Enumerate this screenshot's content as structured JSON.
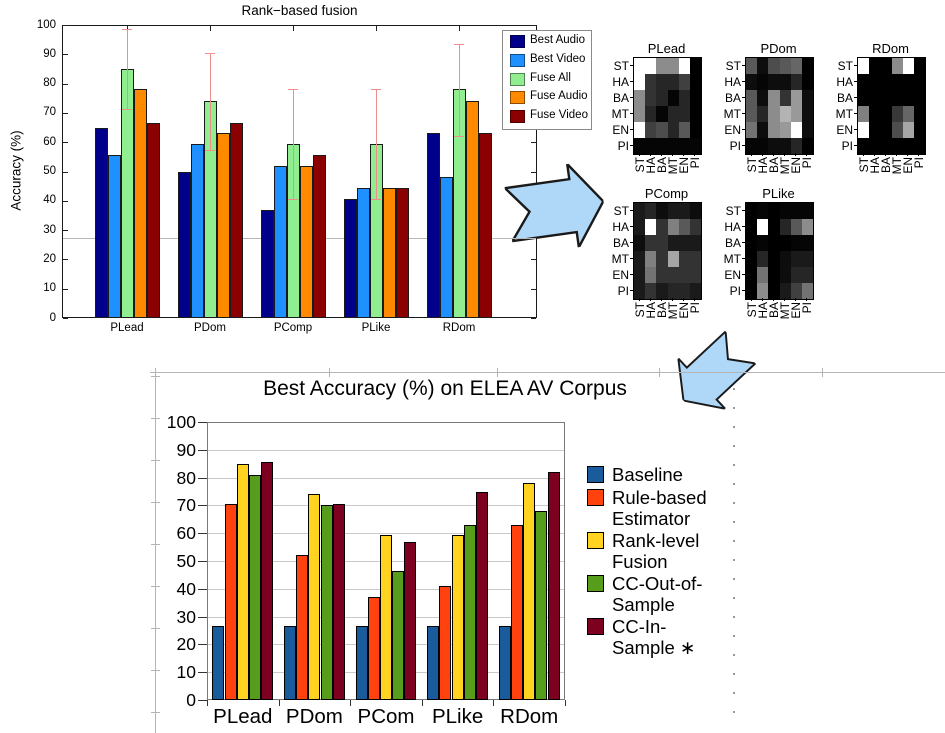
{
  "arrows": {
    "fill": "#AED7F8",
    "outline": "#1a1a1a",
    "directions": [
      "right",
      "down-left"
    ]
  },
  "chart_data": [
    {
      "type": "bar",
      "title": "Rank−based fusion",
      "ylabel": "Accuracy (%)",
      "ylim": [
        0,
        100
      ],
      "yticks": [
        0,
        10,
        20,
        30,
        40,
        50,
        60,
        70,
        80,
        90,
        100
      ],
      "categories": [
        "PLead",
        "PDom",
        "PComp",
        "PLike",
        "RDom"
      ],
      "series": [
        {
          "name": "Best Audio",
          "color": "#00008B",
          "values": [
            65,
            50,
            37,
            40.5,
            63
          ]
        },
        {
          "name": "Best Video",
          "color": "#1E90FF",
          "values": [
            55.5,
            59.5,
            52,
            44.5,
            48
          ]
        },
        {
          "name": "Fuse All",
          "color": "#90EE90",
          "values": [
            85,
            74,
            59.5,
            59.5,
            78
          ],
          "err_low": [
            71.5,
            57.5,
            40.5,
            40.5,
            62
          ],
          "err_high": [
            98.5,
            90.5,
            78,
            78,
            93.5
          ]
        },
        {
          "name": "Fuse Audio",
          "color": "#FF8A00",
          "values": [
            78,
            63,
            52,
            44.5,
            74
          ]
        },
        {
          "name": "Fuse Video",
          "color": "#8B0000",
          "values": [
            66.5,
            66.5,
            55.5,
            44.5,
            63
          ]
        }
      ],
      "chance_line": 27.3,
      "error_bar_color": "#F08E8E",
      "legend_position": "top-right",
      "grid": "off"
    },
    {
      "type": "heatmap",
      "colormap": "gray",
      "row_labels": [
        "ST",
        "HA",
        "BA",
        "MT",
        "EN",
        "PI"
      ],
      "col_labels": [
        "ST",
        "HA",
        "BA",
        "MT",
        "EN",
        "PI"
      ],
      "maps": [
        {
          "title": "PLead",
          "cells": [
            [
              1.0,
              1.0,
              0.55,
              0.55,
              1.0,
              0.0
            ],
            [
              1.0,
              0.2,
              0.15,
              0.15,
              0.25,
              0.0
            ],
            [
              0.55,
              0.2,
              0.15,
              0.02,
              0.15,
              0.0
            ],
            [
              0.55,
              0.15,
              0.02,
              0.15,
              0.15,
              0.0
            ],
            [
              1.0,
              0.25,
              0.3,
              0.15,
              0.35,
              0.0
            ],
            [
              0.02,
              0.02,
              0.02,
              0.02,
              0.02,
              0.02
            ]
          ]
        },
        {
          "title": "PDom",
          "cells": [
            [
              0.35,
              0.05,
              0.3,
              0.35,
              0.4,
              0.0
            ],
            [
              0.05,
              0.02,
              0.05,
              0.05,
              0.15,
              0.0
            ],
            [
              0.35,
              0.05,
              0.55,
              0.2,
              0.6,
              0.05
            ],
            [
              0.35,
              0.15,
              0.55,
              0.7,
              0.6,
              0.05
            ],
            [
              0.45,
              0.05,
              0.55,
              0.6,
              1.0,
              0.05
            ],
            [
              0.02,
              0.02,
              0.05,
              0.05,
              0.15,
              0.0
            ]
          ]
        },
        {
          "title": "RDom",
          "cells": [
            [
              1.0,
              0.0,
              0.0,
              0.55,
              1.0,
              0.0
            ],
            [
              0.0,
              0.0,
              0.0,
              0.0,
              0.0,
              0.0
            ],
            [
              0.0,
              0.0,
              0.0,
              0.0,
              0.0,
              0.0
            ],
            [
              0.5,
              0.0,
              0.0,
              0.22,
              0.4,
              0.0
            ],
            [
              1.0,
              0.0,
              0.0,
              0.3,
              0.65,
              0.0
            ],
            [
              0.0,
              0.0,
              0.0,
              0.0,
              0.0,
              0.0
            ]
          ]
        },
        {
          "title": "PComp",
          "cells": [
            [
              0.1,
              0.15,
              0.05,
              0.1,
              0.1,
              0.05
            ],
            [
              0.1,
              1.0,
              0.2,
              0.5,
              0.35,
              0.2
            ],
            [
              0.05,
              0.2,
              0.2,
              0.1,
              0.1,
              0.1
            ],
            [
              0.1,
              0.5,
              0.2,
              0.65,
              0.2,
              0.2
            ],
            [
              0.1,
              0.45,
              0.2,
              0.2,
              0.2,
              0.2
            ],
            [
              0.1,
              0.2,
              0.1,
              0.15,
              0.15,
              0.1
            ]
          ]
        },
        {
          "title": "PLike",
          "cells": [
            [
              0.0,
              0.02,
              0.0,
              0.02,
              0.02,
              0.02
            ],
            [
              0.0,
              1.0,
              0.0,
              0.15,
              0.35,
              0.55
            ],
            [
              0.0,
              0.02,
              0.0,
              0.0,
              0.02,
              0.02
            ],
            [
              0.0,
              0.15,
              0.0,
              0.05,
              0.1,
              0.1
            ],
            [
              0.0,
              0.45,
              0.0,
              0.05,
              0.15,
              0.15
            ],
            [
              0.0,
              0.55,
              0.0,
              0.1,
              0.25,
              0.45
            ]
          ]
        }
      ]
    },
    {
      "type": "bar",
      "title": "Best Accuracy (%) on ELEA AV Corpus",
      "ylim": [
        0,
        100
      ],
      "yticks": [
        0,
        10,
        20,
        30,
        40,
        50,
        60,
        70,
        80,
        90,
        100
      ],
      "categories": [
        "PLead",
        "PDom",
        "PCom",
        "PLike",
        "RDom"
      ],
      "series": [
        {
          "name": "Baseline",
          "lines": [
            "Baseline"
          ],
          "color": "#1A5B9C",
          "values": [
            26.5,
            26.5,
            26.5,
            26.5,
            26.5
          ]
        },
        {
          "name": "Rule-based Estimator",
          "lines": [
            "Rule-based",
            "Estimator"
          ],
          "color": "#FF420E",
          "values": [
            70.5,
            52,
            37,
            41,
            63
          ]
        },
        {
          "name": "Rank-level Fusion",
          "lines": [
            "Rank-level",
            "Fusion"
          ],
          "color": "#FFD320",
          "values": [
            85,
            74,
            59.5,
            59.5,
            78
          ]
        },
        {
          "name": "CC-Out-of-Sample",
          "lines": [
            "CC-Out-of-",
            "Sample"
          ],
          "color": "#579D1C",
          "values": [
            81,
            70,
            46.5,
            63,
            68
          ]
        },
        {
          "name": "CC-In-Sample ∗",
          "lines": [
            "CC-In-",
            "Sample ∗"
          ],
          "color": "#7E0021",
          "values": [
            85.5,
            70.5,
            57,
            75,
            82
          ]
        }
      ],
      "grid": "horizontal",
      "legend_position": "right"
    }
  ]
}
